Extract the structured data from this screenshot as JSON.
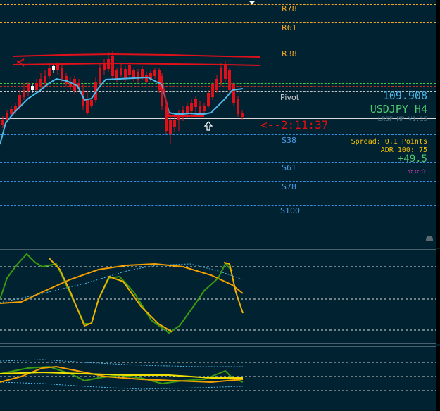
{
  "instrument": {
    "symbol_tf": "USDJPY H4",
    "price": "109.908"
  },
  "countdown": "<--2:11:37",
  "indicator_name": "LRSF MP V1.15",
  "spread": "Spread: 0.1 Points",
  "adr": "ADR 100: 75",
  "change": "+49.5",
  "stars": "✫✫✫",
  "levels": {
    "r78": "R78",
    "r61": "R61",
    "r38": "R38",
    "pivot": "Pivot",
    "s38": "S38",
    "s61": "S61",
    "s78": "S78",
    "s100": "S100"
  },
  "colors": {
    "background": "#002231",
    "bull": "#ffffff",
    "bear": "#e0101a",
    "resistance": "#f5a623",
    "support": "#3a8fe0",
    "price_blue": "#4fb8e8",
    "symbol_green": "#4fc870",
    "osc_green": "#3a9a10",
    "osc_orange": "#f5a000",
    "osc_yellow": "#f0d000"
  },
  "icons": {
    "up_arrow": "hollow-up-arrow-icon",
    "skull": "skull-icon",
    "top_marker": "triangle-marker-icon"
  }
}
